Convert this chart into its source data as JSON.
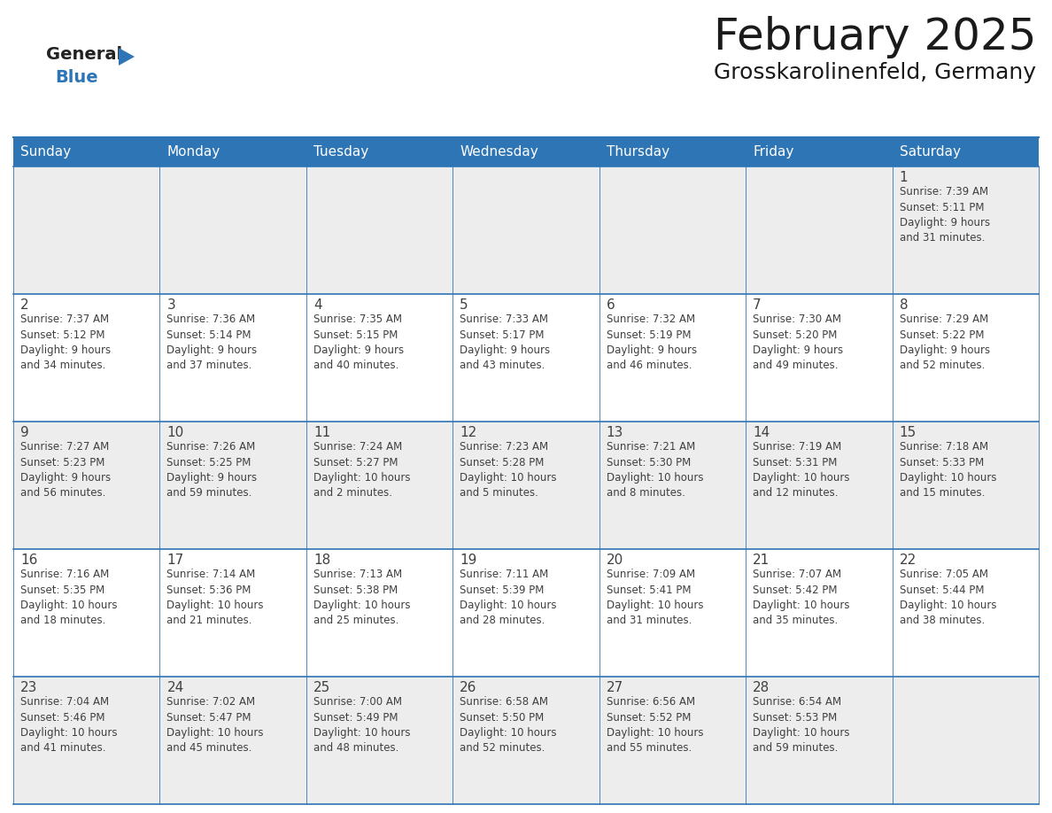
{
  "title": "February 2025",
  "subtitle": "Grosskarolinenfeld, Germany",
  "header_bg": "#2E75B6",
  "header_text_color": "#FFFFFF",
  "cell_bg_light": "#EDEDED",
  "cell_bg_white": "#FFFFFF",
  "line_color": "#2E75B6",
  "text_color": "#404040",
  "day_number_color": "#404040",
  "days_of_week": [
    "Sunday",
    "Monday",
    "Tuesday",
    "Wednesday",
    "Thursday",
    "Friday",
    "Saturday"
  ],
  "weeks": [
    [
      {
        "day": null,
        "info": null
      },
      {
        "day": null,
        "info": null
      },
      {
        "day": null,
        "info": null
      },
      {
        "day": null,
        "info": null
      },
      {
        "day": null,
        "info": null
      },
      {
        "day": null,
        "info": null
      },
      {
        "day": 1,
        "info": "Sunrise: 7:39 AM\nSunset: 5:11 PM\nDaylight: 9 hours\nand 31 minutes."
      }
    ],
    [
      {
        "day": 2,
        "info": "Sunrise: 7:37 AM\nSunset: 5:12 PM\nDaylight: 9 hours\nand 34 minutes."
      },
      {
        "day": 3,
        "info": "Sunrise: 7:36 AM\nSunset: 5:14 PM\nDaylight: 9 hours\nand 37 minutes."
      },
      {
        "day": 4,
        "info": "Sunrise: 7:35 AM\nSunset: 5:15 PM\nDaylight: 9 hours\nand 40 minutes."
      },
      {
        "day": 5,
        "info": "Sunrise: 7:33 AM\nSunset: 5:17 PM\nDaylight: 9 hours\nand 43 minutes."
      },
      {
        "day": 6,
        "info": "Sunrise: 7:32 AM\nSunset: 5:19 PM\nDaylight: 9 hours\nand 46 minutes."
      },
      {
        "day": 7,
        "info": "Sunrise: 7:30 AM\nSunset: 5:20 PM\nDaylight: 9 hours\nand 49 minutes."
      },
      {
        "day": 8,
        "info": "Sunrise: 7:29 AM\nSunset: 5:22 PM\nDaylight: 9 hours\nand 52 minutes."
      }
    ],
    [
      {
        "day": 9,
        "info": "Sunrise: 7:27 AM\nSunset: 5:23 PM\nDaylight: 9 hours\nand 56 minutes."
      },
      {
        "day": 10,
        "info": "Sunrise: 7:26 AM\nSunset: 5:25 PM\nDaylight: 9 hours\nand 59 minutes."
      },
      {
        "day": 11,
        "info": "Sunrise: 7:24 AM\nSunset: 5:27 PM\nDaylight: 10 hours\nand 2 minutes."
      },
      {
        "day": 12,
        "info": "Sunrise: 7:23 AM\nSunset: 5:28 PM\nDaylight: 10 hours\nand 5 minutes."
      },
      {
        "day": 13,
        "info": "Sunrise: 7:21 AM\nSunset: 5:30 PM\nDaylight: 10 hours\nand 8 minutes."
      },
      {
        "day": 14,
        "info": "Sunrise: 7:19 AM\nSunset: 5:31 PM\nDaylight: 10 hours\nand 12 minutes."
      },
      {
        "day": 15,
        "info": "Sunrise: 7:18 AM\nSunset: 5:33 PM\nDaylight: 10 hours\nand 15 minutes."
      }
    ],
    [
      {
        "day": 16,
        "info": "Sunrise: 7:16 AM\nSunset: 5:35 PM\nDaylight: 10 hours\nand 18 minutes."
      },
      {
        "day": 17,
        "info": "Sunrise: 7:14 AM\nSunset: 5:36 PM\nDaylight: 10 hours\nand 21 minutes."
      },
      {
        "day": 18,
        "info": "Sunrise: 7:13 AM\nSunset: 5:38 PM\nDaylight: 10 hours\nand 25 minutes."
      },
      {
        "day": 19,
        "info": "Sunrise: 7:11 AM\nSunset: 5:39 PM\nDaylight: 10 hours\nand 28 minutes."
      },
      {
        "day": 20,
        "info": "Sunrise: 7:09 AM\nSunset: 5:41 PM\nDaylight: 10 hours\nand 31 minutes."
      },
      {
        "day": 21,
        "info": "Sunrise: 7:07 AM\nSunset: 5:42 PM\nDaylight: 10 hours\nand 35 minutes."
      },
      {
        "day": 22,
        "info": "Sunrise: 7:05 AM\nSunset: 5:44 PM\nDaylight: 10 hours\nand 38 minutes."
      }
    ],
    [
      {
        "day": 23,
        "info": "Sunrise: 7:04 AM\nSunset: 5:46 PM\nDaylight: 10 hours\nand 41 minutes."
      },
      {
        "day": 24,
        "info": "Sunrise: 7:02 AM\nSunset: 5:47 PM\nDaylight: 10 hours\nand 45 minutes."
      },
      {
        "day": 25,
        "info": "Sunrise: 7:00 AM\nSunset: 5:49 PM\nDaylight: 10 hours\nand 48 minutes."
      },
      {
        "day": 26,
        "info": "Sunrise: 6:58 AM\nSunset: 5:50 PM\nDaylight: 10 hours\nand 52 minutes."
      },
      {
        "day": 27,
        "info": "Sunrise: 6:56 AM\nSunset: 5:52 PM\nDaylight: 10 hours\nand 55 minutes."
      },
      {
        "day": 28,
        "info": "Sunrise: 6:54 AM\nSunset: 5:53 PM\nDaylight: 10 hours\nand 59 minutes."
      },
      {
        "day": null,
        "info": null
      }
    ]
  ],
  "logo_general_color": "#222222",
  "logo_blue_color": "#2E75B6",
  "logo_triangle_color": "#2E75B6",
  "title_fontsize": 36,
  "subtitle_fontsize": 18,
  "header_fontsize": 11,
  "day_num_fontsize": 11,
  "cell_text_fontsize": 8.5
}
